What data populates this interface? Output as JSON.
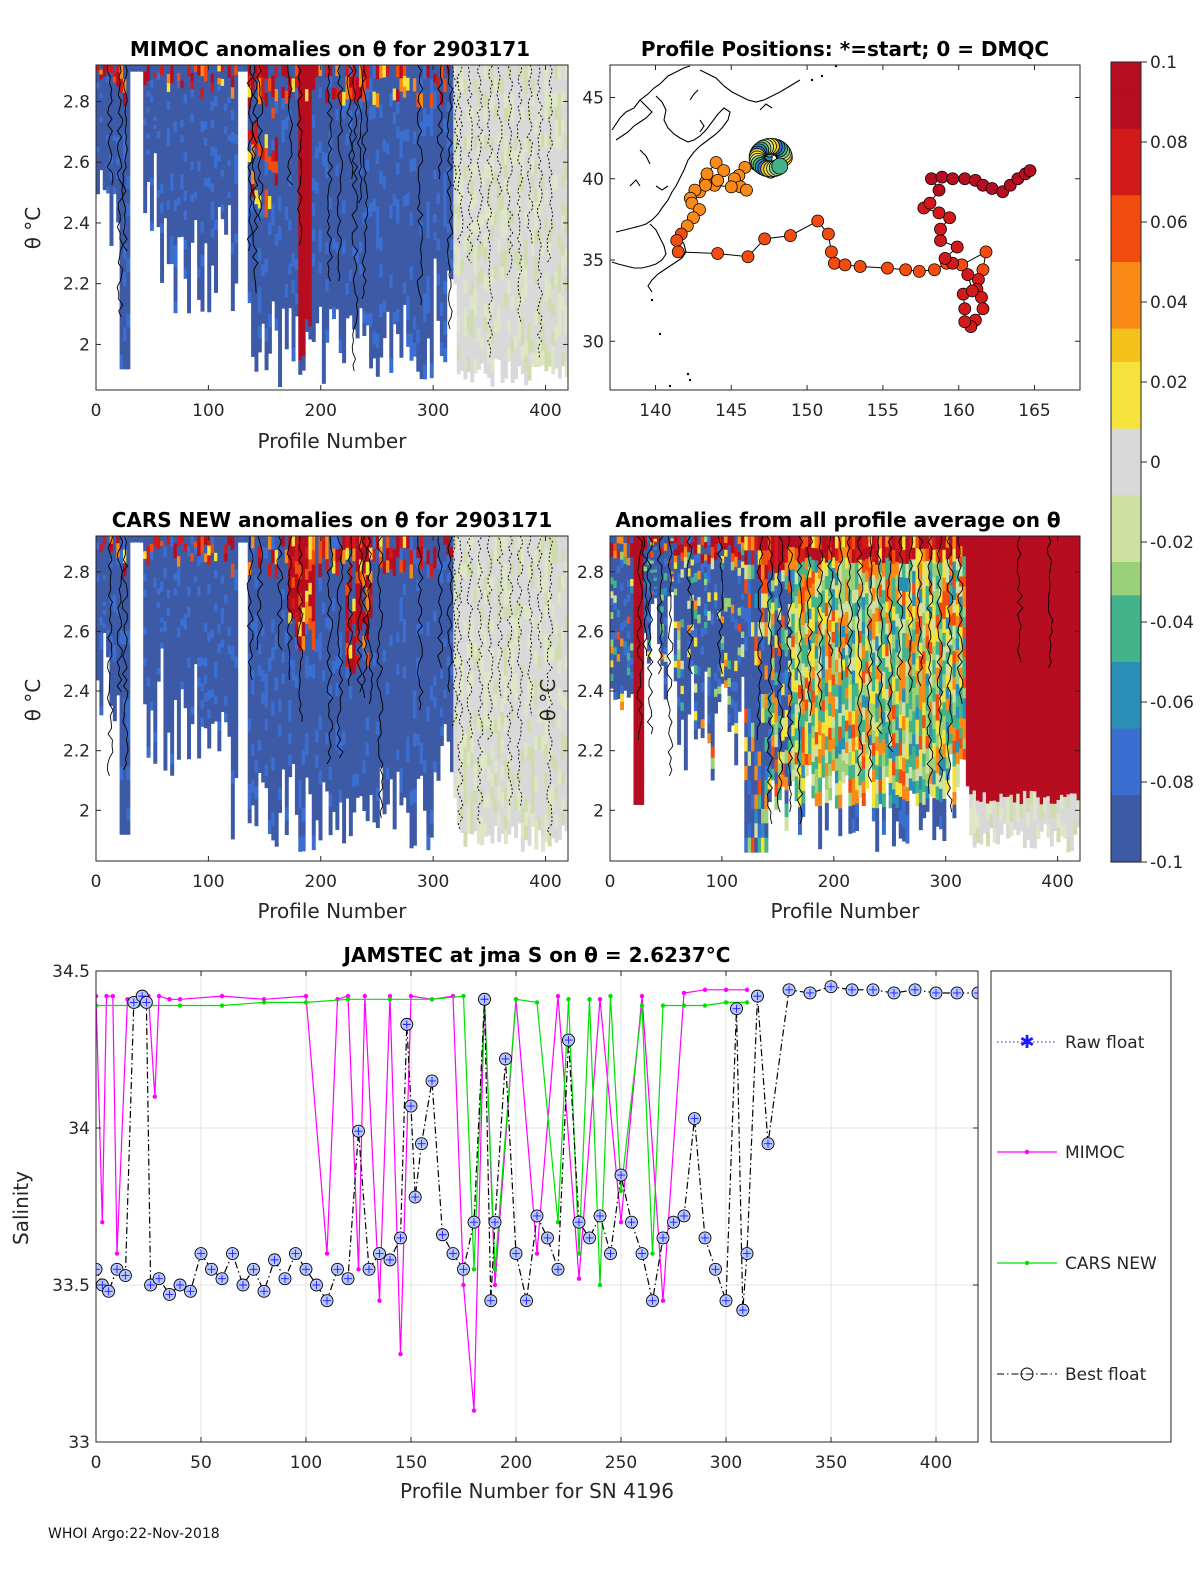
{
  "footer": "WHOI Argo:22-Nov-2018",
  "colorbar": {
    "ticks": [
      "0.1",
      "0.08",
      "0.06",
      "0.04",
      "0.02",
      "0",
      "-0.02",
      "-0.04",
      "-0.06",
      "-0.08",
      "-0.1"
    ],
    "colors": [
      "#b70d20",
      "#d31a1a",
      "#f34c0f",
      "#fa8a17",
      "#f5c21c",
      "#f5e23b",
      "#d9d9d9",
      "#cfe0a0",
      "#9bd07a",
      "#43b38c",
      "#2a8fb6",
      "#3a6ed0",
      "#3d5aa6"
    ]
  },
  "panels": {
    "mimoc": {
      "title": "MIMOC anomalies on θ  for 2903171",
      "xlabel": "Profile Number",
      "ylabel": "θ °C",
      "xticks": [
        "0",
        "100",
        "200",
        "300",
        "400"
      ],
      "yticks": [
        "2.8",
        "2.6",
        "2.4",
        "2.2",
        "2"
      ]
    },
    "positions": {
      "title": "Profile Positions: *=start; 0 = DMQC",
      "xticks": [
        "140",
        "145",
        "150",
        "155",
        "160",
        "165"
      ],
      "yticks": [
        "45",
        "40",
        "35",
        "30"
      ]
    },
    "cars": {
      "title": "CARS NEW anomalies on θ for 2903171",
      "xlabel": "Profile Number",
      "ylabel": "θ °C",
      "xticks": [
        "0",
        "100",
        "200",
        "300",
        "400"
      ],
      "yticks": [
        "2.8",
        "2.6",
        "2.4",
        "2.2",
        "2"
      ]
    },
    "avg": {
      "title": "Anomalies from all profile average on θ",
      "xlabel": "Profile Number",
      "ylabel": "θ °C",
      "xticks": [
        "0",
        "100",
        "200",
        "300",
        "400"
      ],
      "yticks": [
        "2.8",
        "2.6",
        "2.4",
        "2.2",
        "2"
      ]
    }
  },
  "chart_data": [
    {
      "type": "heatmap",
      "title": "MIMOC anomalies on θ  for 2903171",
      "xlabel": "Profile Number",
      "ylabel": "θ °C",
      "xlim": [
        0,
        420
      ],
      "ylim": [
        1.85,
        2.92
      ],
      "clim": [
        -0.1,
        0.1
      ]
    },
    {
      "type": "scatter",
      "title": "Profile Positions: *=start; 0 = DMQC",
      "xlim": [
        137,
        168
      ],
      "ylim": [
        27,
        47
      ],
      "track": [
        [
          146.8,
          40.8
        ],
        [
          147.3,
          41.3
        ],
        [
          147.5,
          41.7
        ],
        [
          148,
          41.9
        ],
        [
          148.4,
          41.5
        ],
        [
          148.1,
          40.8
        ],
        [
          147.6,
          40.4
        ],
        [
          147.2,
          40.6
        ],
        [
          146.6,
          40.9
        ],
        [
          145.9,
          40.7
        ],
        [
          145.5,
          40.2
        ],
        [
          145.2,
          40
        ],
        [
          145.6,
          39.5
        ],
        [
          146,
          39.3
        ],
        [
          145,
          39.5
        ],
        [
          143.9,
          39.6
        ],
        [
          143.3,
          39.8
        ],
        [
          142.9,
          39.2
        ],
        [
          143.4,
          40.3
        ],
        [
          144,
          41
        ],
        [
          144.5,
          40.5
        ],
        [
          144.1,
          39.9
        ],
        [
          143.3,
          39.6
        ],
        [
          142.6,
          39.3
        ],
        [
          142.3,
          38.8
        ],
        [
          142.4,
          38.5
        ],
        [
          142.9,
          38.1
        ],
        [
          142.5,
          37.6
        ],
        [
          142.1,
          37.1
        ],
        [
          141.7,
          36.6
        ],
        [
          141.4,
          36.2
        ],
        [
          141.5,
          35.5
        ],
        [
          144.1,
          35.4
        ],
        [
          146.1,
          35.2
        ],
        [
          147.2,
          36.3
        ],
        [
          148.9,
          36.5
        ],
        [
          150.7,
          37.4
        ],
        [
          151.4,
          36.6
        ],
        [
          151.6,
          35.5
        ],
        [
          151.8,
          34.8
        ],
        [
          152.5,
          34.7
        ],
        [
          153.5,
          34.6
        ],
        [
          155.3,
          34.5
        ],
        [
          156.5,
          34.4
        ],
        [
          157.4,
          34.3
        ],
        [
          158.4,
          34.4
        ],
        [
          159.2,
          34.8
        ],
        [
          160.2,
          34.7
        ],
        [
          161.8,
          35.5
        ],
        [
          161.6,
          34.4
        ],
        [
          161.3,
          33.8
        ],
        [
          161.2,
          33.2
        ],
        [
          161.5,
          32.7
        ],
        [
          161.6,
          32
        ],
        [
          161.1,
          31.3
        ],
        [
          160.8,
          30.9
        ],
        [
          160.4,
          31.2
        ],
        [
          160.4,
          32
        ],
        [
          160.3,
          32.9
        ],
        [
          160.9,
          33.1
        ],
        [
          160.6,
          34.1
        ],
        [
          159.6,
          34.8
        ],
        [
          159.1,
          35.1
        ],
        [
          159.9,
          35.8
        ],
        [
          158.8,
          36.2
        ],
        [
          158.8,
          36.9
        ],
        [
          159.4,
          37.6
        ],
        [
          158.7,
          37.9
        ],
        [
          157.7,
          38.2
        ],
        [
          158.1,
          38.5
        ],
        [
          158.7,
          39.3
        ],
        [
          158.2,
          40
        ],
        [
          158.9,
          40.1
        ],
        [
          159.6,
          40
        ],
        [
          160.4,
          40
        ],
        [
          161.1,
          39.9
        ],
        [
          161.6,
          39.6
        ],
        [
          162.2,
          39.4
        ],
        [
          162.9,
          39.2
        ],
        [
          163.4,
          39.6
        ],
        [
          163.9,
          40
        ],
        [
          164.4,
          40.3
        ],
        [
          164.7,
          40.5
        ]
      ]
    },
    {
      "type": "heatmap",
      "title": "CARS NEW anomalies on θ for 2903171",
      "xlabel": "Profile Number",
      "ylabel": "θ °C",
      "xlim": [
        0,
        420
      ],
      "ylim": [
        1.83,
        2.92
      ],
      "clim": [
        -0.1,
        0.1
      ]
    },
    {
      "type": "heatmap",
      "title": "Anomalies from all profile average on θ",
      "xlabel": "Profile Number",
      "ylabel": "θ °C",
      "xlim": [
        0,
        420
      ],
      "ylim": [
        1.83,
        2.92
      ],
      "clim": [
        -0.1,
        0.1
      ]
    },
    {
      "type": "line",
      "title": "JAMSTEC at jma S on θ = 2.6237°C",
      "xlabel": "Profile Number for SN 4196",
      "ylabel": "Salinity",
      "xlim": [
        0,
        420
      ],
      "ylim": [
        33,
        34.5
      ],
      "xticks": [
        "0",
        "50",
        "100",
        "150",
        "200",
        "250",
        "300",
        "350",
        "400"
      ],
      "yticks": [
        "34.5",
        "34",
        "33.5",
        "33"
      ],
      "legend": [
        "Raw float",
        "MIMOC",
        "CARS NEW",
        "Best float"
      ],
      "legend_position": "outside-right",
      "series": [
        {
          "name": "Best float",
          "x": [
            0,
            3,
            6,
            10,
            14,
            18,
            22,
            24,
            26,
            30,
            35,
            40,
            45,
            50,
            55,
            60,
            65,
            70,
            75,
            80,
            85,
            90,
            95,
            100,
            105,
            110,
            115,
            120,
            125,
            130,
            135,
            140,
            145,
            148,
            150,
            152,
            155,
            160,
            165,
            170,
            175,
            180,
            185,
            188,
            190,
            195,
            200,
            205,
            210,
            215,
            220,
            225,
            230,
            235,
            240,
            245,
            250,
            255,
            260,
            265,
            270,
            275,
            280,
            285,
            290,
            295,
            300,
            305,
            308,
            310,
            315,
            320,
            330,
            340,
            350,
            360,
            370,
            380,
            390,
            400,
            410,
            420
          ],
          "values": [
            33.55,
            33.5,
            33.48,
            33.55,
            33.53,
            34.4,
            34.42,
            34.4,
            33.5,
            33.52,
            33.47,
            33.5,
            33.48,
            33.6,
            33.55,
            33.52,
            33.6,
            33.5,
            33.55,
            33.48,
            33.58,
            33.52,
            33.6,
            33.55,
            33.5,
            33.45,
            33.55,
            33.52,
            33.99,
            33.55,
            33.6,
            33.58,
            33.65,
            34.33,
            34.07,
            33.78,
            33.95,
            34.15,
            33.66,
            33.6,
            33.55,
            33.7,
            34.41,
            33.45,
            33.7,
            34.22,
            33.6,
            33.45,
            33.72,
            33.65,
            33.55,
            34.28,
            33.7,
            33.65,
            33.72,
            33.6,
            33.85,
            33.7,
            33.6,
            33.45,
            33.65,
            33.7,
            33.72,
            34.03,
            33.65,
            33.55,
            33.45,
            34.38,
            33.42,
            33.6,
            34.42,
            33.95,
            34.44,
            34.43,
            34.45,
            34.44,
            34.44,
            34.43,
            34.44,
            34.43,
            34.43,
            34.43
          ]
        },
        {
          "name": "MIMOC",
          "x": [
            0,
            3,
            5,
            8,
            10,
            15,
            20,
            25,
            28,
            30,
            35,
            40,
            60,
            80,
            100,
            110,
            115,
            120,
            125,
            128,
            135,
            140,
            145,
            150,
            160,
            170,
            175,
            180,
            185,
            190,
            200,
            210,
            220,
            230,
            240,
            250,
            260,
            270,
            280,
            290,
            300,
            310
          ],
          "values": [
            34.42,
            33.7,
            34.42,
            34.42,
            33.6,
            34.41,
            34.41,
            34.42,
            34.1,
            34.42,
            34.41,
            34.41,
            34.42,
            34.41,
            34.42,
            33.6,
            34.41,
            34.42,
            33.55,
            34.42,
            33.45,
            34.42,
            33.28,
            34.42,
            34.41,
            34.42,
            33.5,
            33.1,
            34.42,
            33.5,
            34.41,
            33.6,
            34.42,
            33.52,
            34.41,
            33.7,
            34.42,
            33.45,
            34.43,
            34.44,
            34.44,
            34.44
          ]
        },
        {
          "name": "CARS NEW",
          "x": [
            0,
            20,
            40,
            60,
            80,
            100,
            120,
            140,
            160,
            175,
            180,
            185,
            190,
            200,
            210,
            220,
            225,
            230,
            235,
            240,
            245,
            250,
            260,
            265,
            270,
            280,
            290,
            300,
            310
          ],
          "values": [
            34.39,
            34.39,
            34.39,
            34.39,
            34.4,
            34.4,
            34.41,
            34.41,
            34.41,
            34.42,
            33.55,
            34.41,
            33.55,
            34.41,
            34.4,
            33.7,
            34.41,
            33.6,
            34.41,
            33.5,
            34.42,
            33.8,
            34.39,
            33.6,
            34.39,
            34.39,
            34.39,
            34.4,
            34.4
          ]
        }
      ]
    }
  ],
  "bottom": {
    "title": "JAMSTEC at jma S on θ = 2.6237°C",
    "xlabel": "Profile Number for SN 4196",
    "ylabel": "Salinity",
    "legend": {
      "raw": "Raw float",
      "mimoc": "MIMOC",
      "cars": "CARS NEW",
      "best": "Best float"
    }
  }
}
